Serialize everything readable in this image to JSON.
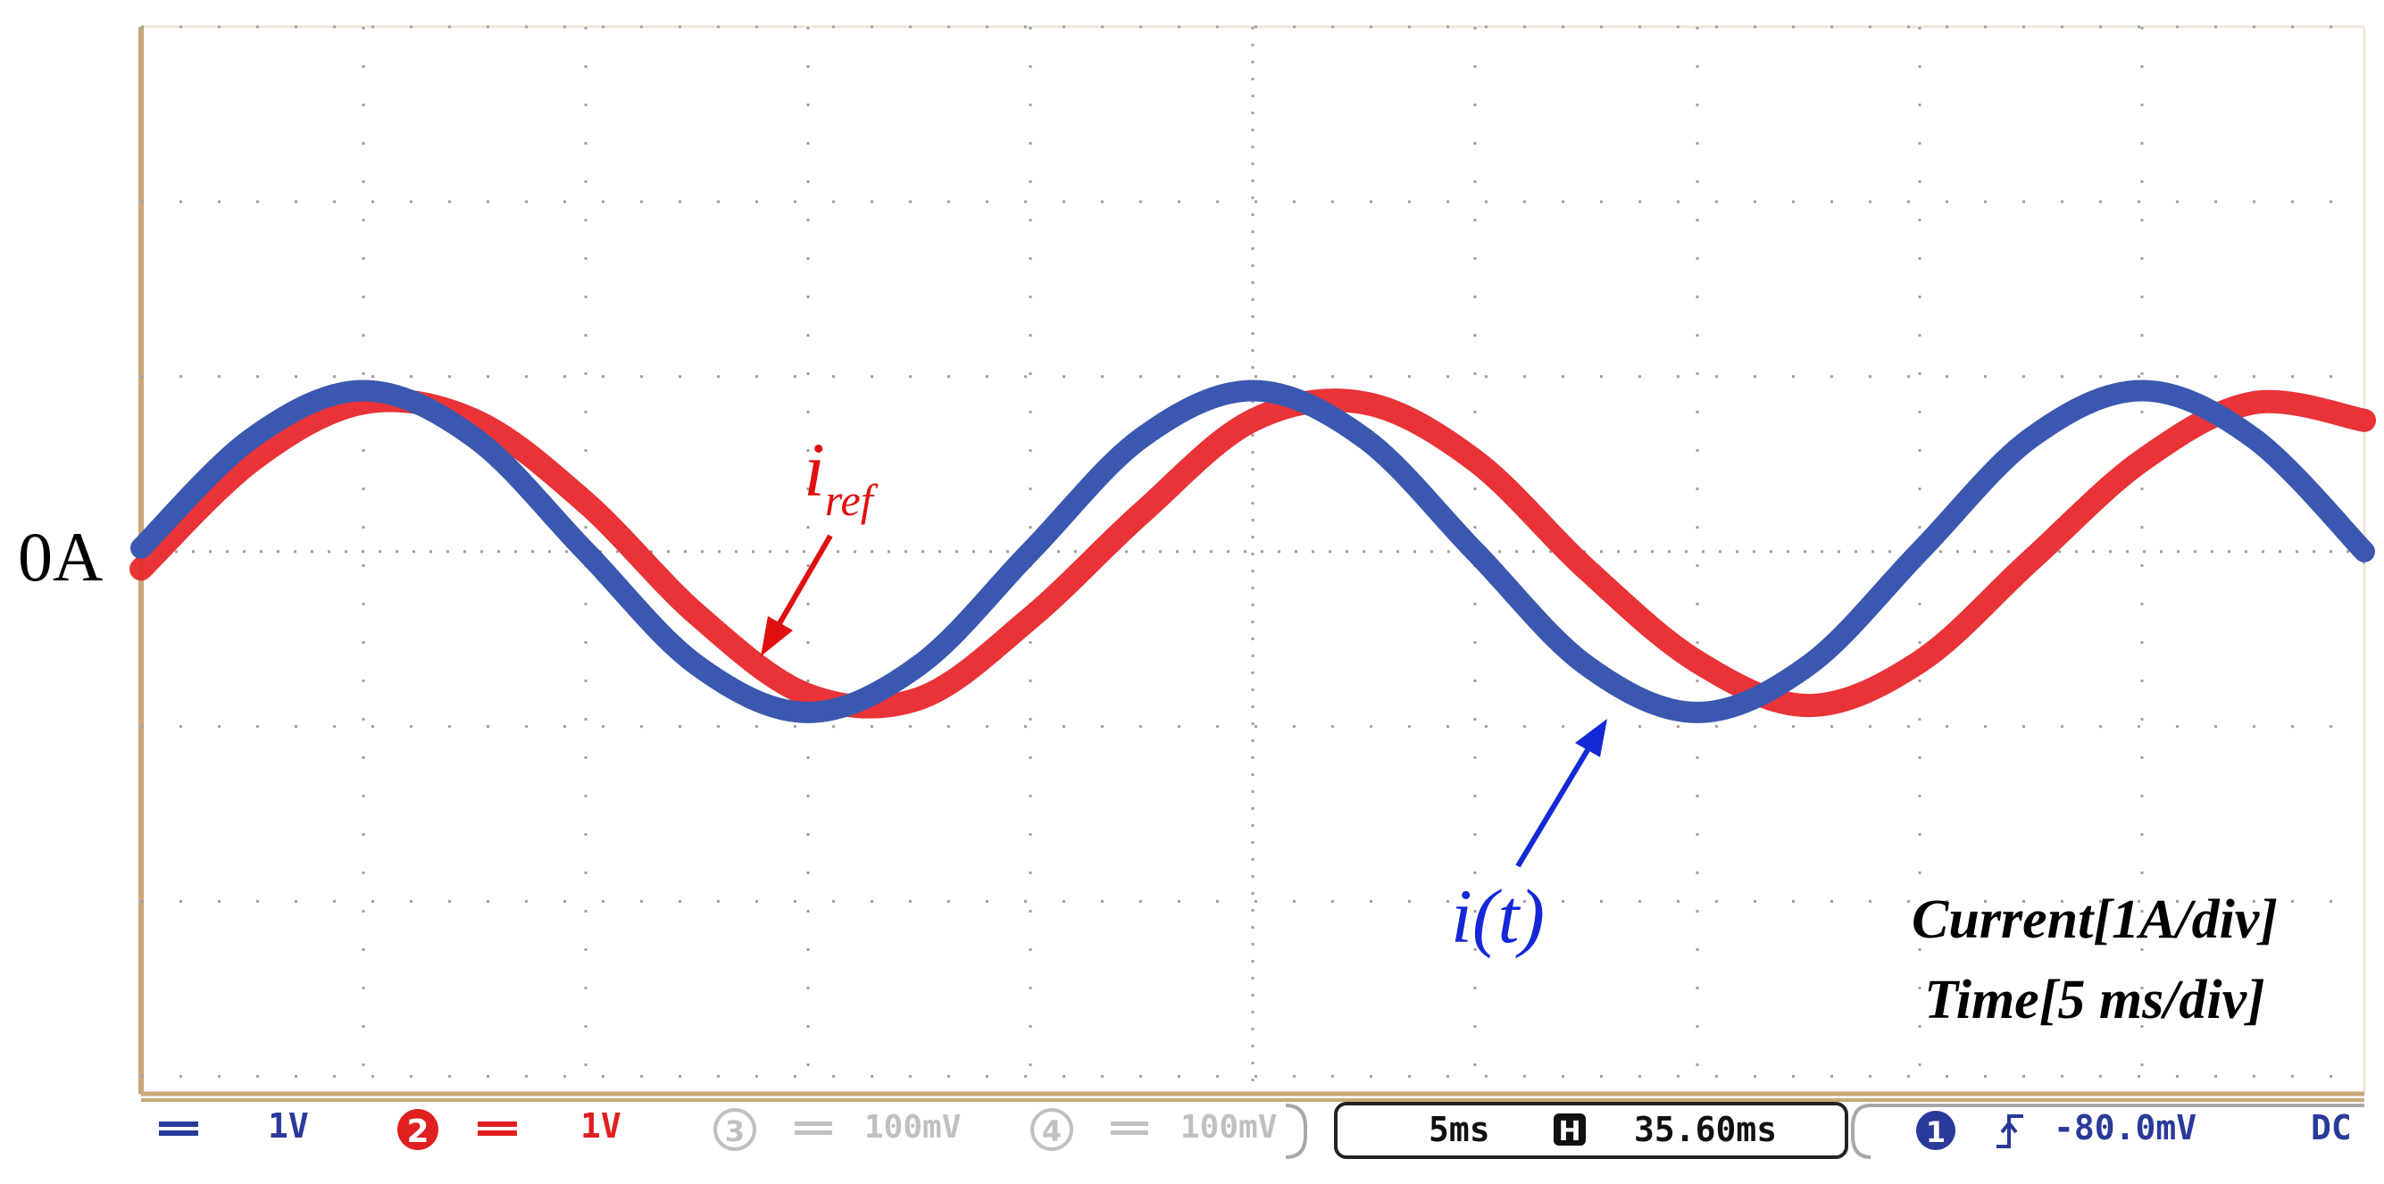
{
  "zero_label": "0A",
  "annotations": {
    "iref_main": "i",
    "iref_sub": "ref",
    "it": "i(t)",
    "scale_line1": "Current[1A/div]",
    "scale_line2": "Time[5 ms/div]"
  },
  "status_bar": {
    "ch1_scale": "1V",
    "ch2_number": "2",
    "ch2_scale": "1V",
    "ch3_number": "3",
    "ch3_scale": "100mV",
    "ch4_number": "4",
    "ch4_scale": "100mV",
    "timebase": "5ms",
    "h_icon": "H",
    "delay": "35.60ms",
    "trig_channel": "1",
    "trig_level": "-80.0mV",
    "coupling": "DC"
  },
  "colors": {
    "frame": "#c8a878",
    "grid": "#a0a0a0",
    "iref": "#e8282c",
    "it": "#3a58b0",
    "iref_label": "#e01010",
    "it_label": "#1428d8",
    "ch2": "#e02020",
    "ch1": "#2a3a9a",
    "inactive": "#c0c0c0"
  },
  "chart_data": {
    "type": "line",
    "title": "",
    "xlabel": "Time[5 ms/div]",
    "ylabel": "Current[1A/div]",
    "x_unit": "ms",
    "y_unit": "A",
    "xlim": [
      0,
      50
    ],
    "ylim": [
      -3.1,
      3.0
    ],
    "grid": true,
    "series": [
      {
        "name": "i_ref",
        "color": "#e8282c",
        "amplitude_A": 0.9,
        "frequency_Hz": 50,
        "x": [
          0,
          2.5,
          5,
          7.5,
          10,
          12.5,
          15,
          17.5,
          20,
          22.5,
          25,
          27.5,
          30,
          32.5,
          35,
          37.5,
          40,
          42.5,
          45,
          47.5,
          50
        ],
        "y": [
          -0.1,
          0.52,
          0.85,
          0.75,
          0.28,
          -0.36,
          -0.82,
          -0.84,
          -0.38,
          0.22,
          0.75,
          0.85,
          0.52,
          -0.1,
          -0.63,
          -0.88,
          -0.63,
          -0.05,
          0.52,
          0.85,
          0.75
        ]
      },
      {
        "name": "i(t)",
        "color": "#3a58b0",
        "amplitude_A": 0.95,
        "frequency_Hz": 50,
        "x": [
          0,
          2.5,
          5,
          7.5,
          10,
          12.5,
          15,
          17.5,
          20,
          22.5,
          25,
          27.5,
          30,
          32.5,
          35,
          37.5,
          40,
          42.5,
          45,
          47.5,
          50
        ],
        "y": [
          0.02,
          0.65,
          0.92,
          0.65,
          0.0,
          -0.65,
          -0.92,
          -0.65,
          0.0,
          0.65,
          0.92,
          0.65,
          0.0,
          -0.65,
          -0.92,
          -0.65,
          0.0,
          0.65,
          0.92,
          0.65,
          0.0
        ]
      }
    ]
  }
}
